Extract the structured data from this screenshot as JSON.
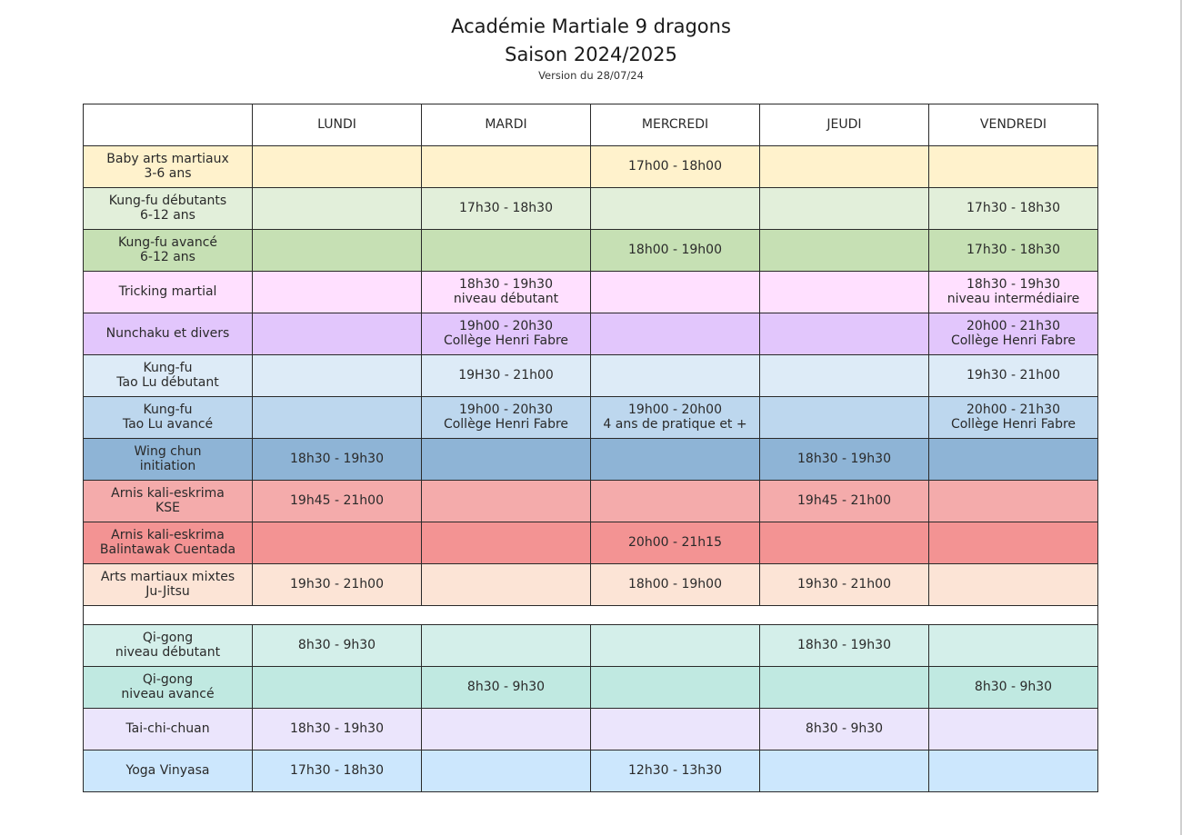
{
  "header": {
    "title_line1": "Académie Martiale 9 dragons",
    "title_line2": "Saison 2024/2025",
    "version": "Version du 28/07/24"
  },
  "days": [
    "LUNDI",
    "MARDI",
    "MERCREDI",
    "JEUDI",
    "VENDREDI"
  ],
  "colors": {
    "baby": "#fff2cc",
    "kungfu_debutants": "#e2efda",
    "kungfu_avance": "#c6e0b4",
    "tricking": "#ffe0ff",
    "nunchaku": "#e2c6fc",
    "taolu_debutant": "#ddebf7",
    "taolu_avance": "#bdd7ee",
    "wingchun": "#8eb4d6",
    "kse": "#f4abab",
    "balintawak": "#f39393",
    "mma": "#fce4d6",
    "qigong_debutant": "#d4efea",
    "qigong_avance": "#c0e9e1",
    "taichi": "#ebe5fc",
    "yoga": "#cce7fd"
  },
  "rows": [
    {
      "label": [
        "Baby arts martiaux",
        "3-6 ans"
      ],
      "color_key": "baby",
      "cells": [
        [],
        [],
        [
          "17h00 - 18h00"
        ],
        [],
        []
      ]
    },
    {
      "label": [
        "Kung-fu débutants",
        "6-12 ans"
      ],
      "color_key": "kungfu_debutants",
      "cells": [
        [],
        [
          "17h30 - 18h30"
        ],
        [],
        [],
        [
          "17h30 - 18h30"
        ]
      ]
    },
    {
      "label": [
        "Kung-fu avancé",
        "6-12 ans"
      ],
      "color_key": "kungfu_avance",
      "cells": [
        [],
        [],
        [
          "18h00 - 19h00"
        ],
        [],
        [
          "17h30 - 18h30"
        ]
      ]
    },
    {
      "label": [
        "Tricking martial"
      ],
      "color_key": "tricking",
      "cells": [
        [],
        [
          "18h30 - 19h30",
          "niveau débutant"
        ],
        [],
        [],
        [
          "18h30 - 19h30",
          "niveau intermédiaire"
        ]
      ]
    },
    {
      "label": [
        "Nunchaku et divers"
      ],
      "color_key": "nunchaku",
      "cells": [
        [],
        [
          "19h00 - 20h30",
          "Collège Henri Fabre"
        ],
        [],
        [],
        [
          "20h00 - 21h30",
          "Collège Henri Fabre"
        ]
      ]
    },
    {
      "label": [
        "Kung-fu",
        "Tao Lu débutant"
      ],
      "color_key": "taolu_debutant",
      "cells": [
        [],
        [
          "19H30 - 21h00"
        ],
        [],
        [],
        [
          "19h30 - 21h00"
        ]
      ]
    },
    {
      "label": [
        "Kung-fu",
        "Tao Lu avancé"
      ],
      "color_key": "taolu_avance",
      "cells": [
        [],
        [
          "19h00 - 20h30",
          "Collège Henri Fabre"
        ],
        [
          "19h00 - 20h00",
          "4 ans de pratique et +"
        ],
        [],
        [
          "20h00 - 21h30",
          "Collège Henri Fabre"
        ]
      ]
    },
    {
      "label": [
        "Wing chun",
        "initiation"
      ],
      "color_key": "wingchun",
      "cells": [
        [
          "18h30 - 19h30"
        ],
        [],
        [],
        [
          "18h30 - 19h30"
        ],
        []
      ]
    },
    {
      "label": [
        "Arnis kali-eskrima",
        "KSE"
      ],
      "color_key": "kse",
      "cells": [
        [
          "19h45 - 21h00"
        ],
        [],
        [],
        [
          "19h45 - 21h00"
        ],
        []
      ]
    },
    {
      "label": [
        "Arnis kali-eskrima",
        "Balintawak Cuentada"
      ],
      "color_key": "balintawak",
      "cells": [
        [],
        [],
        [
          "20h00 - 21h15"
        ],
        [],
        []
      ]
    },
    {
      "label": [
        "Arts martiaux mixtes",
        "Ju-Jitsu"
      ],
      "color_key": "mma",
      "cells": [
        [
          "19h30 - 21h00"
        ],
        [],
        [
          "18h00 - 19h00"
        ],
        [
          "19h30 - 21h00"
        ],
        []
      ]
    },
    {
      "separator": true
    },
    {
      "label": [
        "Qi-gong",
        "niveau débutant"
      ],
      "color_key": "qigong_debutant",
      "cells": [
        [
          "8h30 - 9h30"
        ],
        [],
        [],
        [
          "18h30 - 19h30"
        ],
        []
      ]
    },
    {
      "label": [
        "Qi-gong",
        "niveau avancé"
      ],
      "color_key": "qigong_avance",
      "cells": [
        [],
        [
          "8h30 - 9h30"
        ],
        [],
        [],
        [
          "8h30 - 9h30"
        ]
      ]
    },
    {
      "label": [
        "Tai-chi-chuan"
      ],
      "color_key": "taichi",
      "cells": [
        [
          "18h30 - 19h30"
        ],
        [],
        [],
        [
          "8h30 - 9h30"
        ],
        []
      ]
    },
    {
      "label": [
        "Yoga Vinyasa"
      ],
      "color_key": "yoga",
      "cells": [
        [
          "17h30 - 18h30"
        ],
        [],
        [
          "12h30 - 13h30"
        ],
        [],
        []
      ]
    }
  ]
}
